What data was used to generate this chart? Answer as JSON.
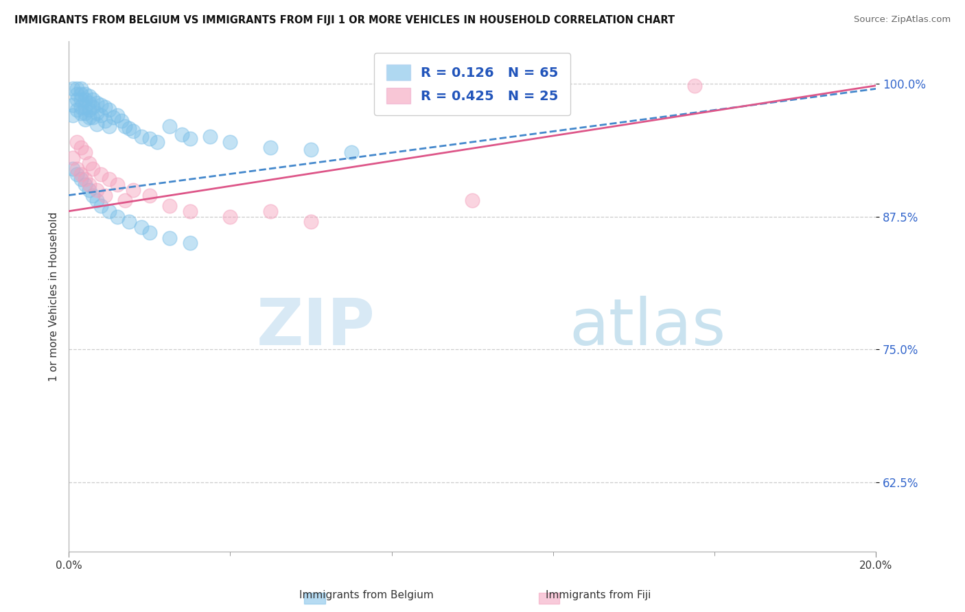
{
  "title": "IMMIGRANTS FROM BELGIUM VS IMMIGRANTS FROM FIJI 1 OR MORE VEHICLES IN HOUSEHOLD CORRELATION CHART",
  "source": "Source: ZipAtlas.com",
  "ylabel": "1 or more Vehicles in Household",
  "legend_belgium": "Immigrants from Belgium",
  "legend_fiji": "Immigrants from Fiji",
  "belgium_R": "0.126",
  "belgium_N": "65",
  "fiji_R": "0.425",
  "fiji_N": "25",
  "belgium_color": "#7bbfe8",
  "fiji_color": "#f4a0bc",
  "belgium_line_color": "#4488cc",
  "fiji_line_color": "#dd5588",
  "xlim": [
    0.0,
    0.2
  ],
  "ylim": [
    0.56,
    1.04
  ],
  "yticks": [
    0.625,
    0.75,
    0.875,
    1.0
  ],
  "ytick_labels": [
    "62.5%",
    "75.0%",
    "87.5%",
    "100.0%"
  ],
  "belgium_x": [
    0.001,
    0.001,
    0.001,
    0.002,
    0.002,
    0.002,
    0.002,
    0.003,
    0.003,
    0.003,
    0.003,
    0.003,
    0.004,
    0.004,
    0.004,
    0.004,
    0.004,
    0.005,
    0.005,
    0.005,
    0.005,
    0.006,
    0.006,
    0.006,
    0.007,
    0.007,
    0.007,
    0.008,
    0.008,
    0.009,
    0.009,
    0.01,
    0.01,
    0.011,
    0.012,
    0.013,
    0.014,
    0.015,
    0.016,
    0.018,
    0.02,
    0.022,
    0.025,
    0.028,
    0.03,
    0.035,
    0.04,
    0.05,
    0.06,
    0.07,
    0.001,
    0.002,
    0.003,
    0.004,
    0.005,
    0.006,
    0.007,
    0.008,
    0.01,
    0.012,
    0.015,
    0.018,
    0.02,
    0.025,
    0.03
  ],
  "belgium_y": [
    0.995,
    0.98,
    0.97,
    0.995,
    0.99,
    0.985,
    0.975,
    0.995,
    0.99,
    0.985,
    0.978,
    0.972,
    0.99,
    0.985,
    0.978,
    0.972,
    0.966,
    0.988,
    0.982,
    0.975,
    0.968,
    0.985,
    0.978,
    0.968,
    0.982,
    0.972,
    0.962,
    0.98,
    0.97,
    0.978,
    0.965,
    0.975,
    0.96,
    0.968,
    0.97,
    0.965,
    0.96,
    0.958,
    0.955,
    0.95,
    0.948,
    0.945,
    0.96,
    0.952,
    0.948,
    0.95,
    0.945,
    0.94,
    0.938,
    0.935,
    0.92,
    0.915,
    0.91,
    0.905,
    0.9,
    0.895,
    0.89,
    0.885,
    0.88,
    0.875,
    0.87,
    0.865,
    0.86,
    0.855,
    0.85
  ],
  "fiji_x": [
    0.001,
    0.002,
    0.002,
    0.003,
    0.003,
    0.004,
    0.004,
    0.005,
    0.005,
    0.006,
    0.007,
    0.008,
    0.009,
    0.01,
    0.012,
    0.014,
    0.016,
    0.02,
    0.025,
    0.03,
    0.04,
    0.05,
    0.06,
    0.1,
    0.155
  ],
  "fiji_y": [
    0.93,
    0.945,
    0.92,
    0.94,
    0.915,
    0.935,
    0.91,
    0.925,
    0.905,
    0.92,
    0.9,
    0.915,
    0.895,
    0.91,
    0.905,
    0.89,
    0.9,
    0.895,
    0.885,
    0.88,
    0.875,
    0.88,
    0.87,
    0.89,
    0.998
  ],
  "bel_line_x": [
    0.0,
    0.2
  ],
  "bel_line_y": [
    0.895,
    0.995
  ],
  "fiji_line_x": [
    0.0,
    0.2
  ],
  "fiji_line_y": [
    0.88,
    0.998
  ],
  "watermark_zip": "ZIP",
  "watermark_atlas": "atlas",
  "background_color": "#ffffff"
}
